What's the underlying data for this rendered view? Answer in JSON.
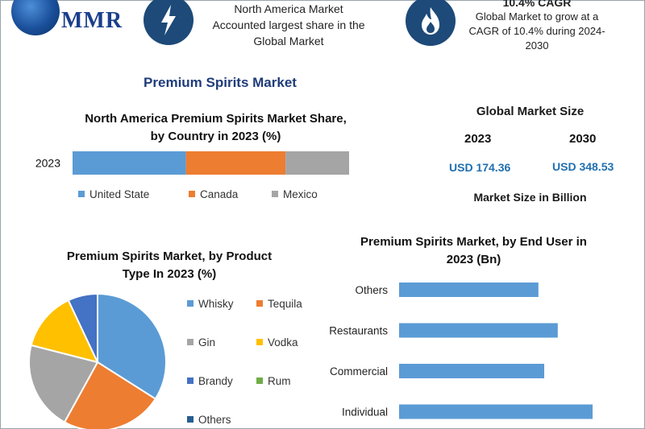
{
  "header": {
    "logo_text": "MMR",
    "item1": {
      "lines": [
        "North America Market",
        "Accounted largest share in the",
        "Global Market"
      ]
    },
    "item2": {
      "title": "10.4% CAGR",
      "lines": [
        "Global Market to grow at a",
        "CAGR of 10.4% during 2024-",
        "2030"
      ]
    }
  },
  "page_title": "Premium Spirits Market",
  "market_size": {
    "title": "Global Market Size",
    "years": [
      "2023",
      "2030"
    ],
    "values": [
      "USD 174.36",
      "USD 348.53"
    ],
    "unit_label": "Market Size in Billion"
  },
  "colors": {
    "blue": "#5b9bd5",
    "orange": "#ed7d31",
    "gray": "#a5a5a5",
    "yellow": "#ffc000",
    "navy": "#4472c4",
    "green": "#70ad47",
    "darkblue": "#255e91"
  },
  "chart_data": [
    {
      "type": "bar",
      "orientation": "horizontal-stacked",
      "title_lines": [
        "North America Premium Spirits Market Share,",
        "by Country in 2023 (%)"
      ],
      "categories": [
        "2023"
      ],
      "series": [
        {
          "name": "United State",
          "values": [
            41
          ]
        },
        {
          "name": "Canada",
          "values": [
            36
          ]
        },
        {
          "name": "Mexico",
          "values": [
            23
          ]
        }
      ],
      "legend": "bottom"
    },
    {
      "type": "pie",
      "title_lines": [
        "Premium Spirits Market, by Product",
        "Type In 2023 (%)"
      ],
      "labels": [
        "Whisky",
        "Tequila",
        "Gin",
        "Vodka",
        "Brandy",
        "Rum",
        "Others"
      ],
      "values": [
        34,
        24,
        21,
        14,
        7,
        0,
        0
      ],
      "legend": "right"
    },
    {
      "type": "bar",
      "orientation": "horizontal",
      "title_lines": [
        "Premium Spirits Market, by End User in",
        "2023 (Bn)"
      ],
      "categories": [
        "Others",
        "Restaurants",
        "Commercial",
        "Individual"
      ],
      "values": [
        72,
        82,
        75,
        100
      ],
      "xlim": [
        0,
        100
      ],
      "grid": false
    }
  ]
}
